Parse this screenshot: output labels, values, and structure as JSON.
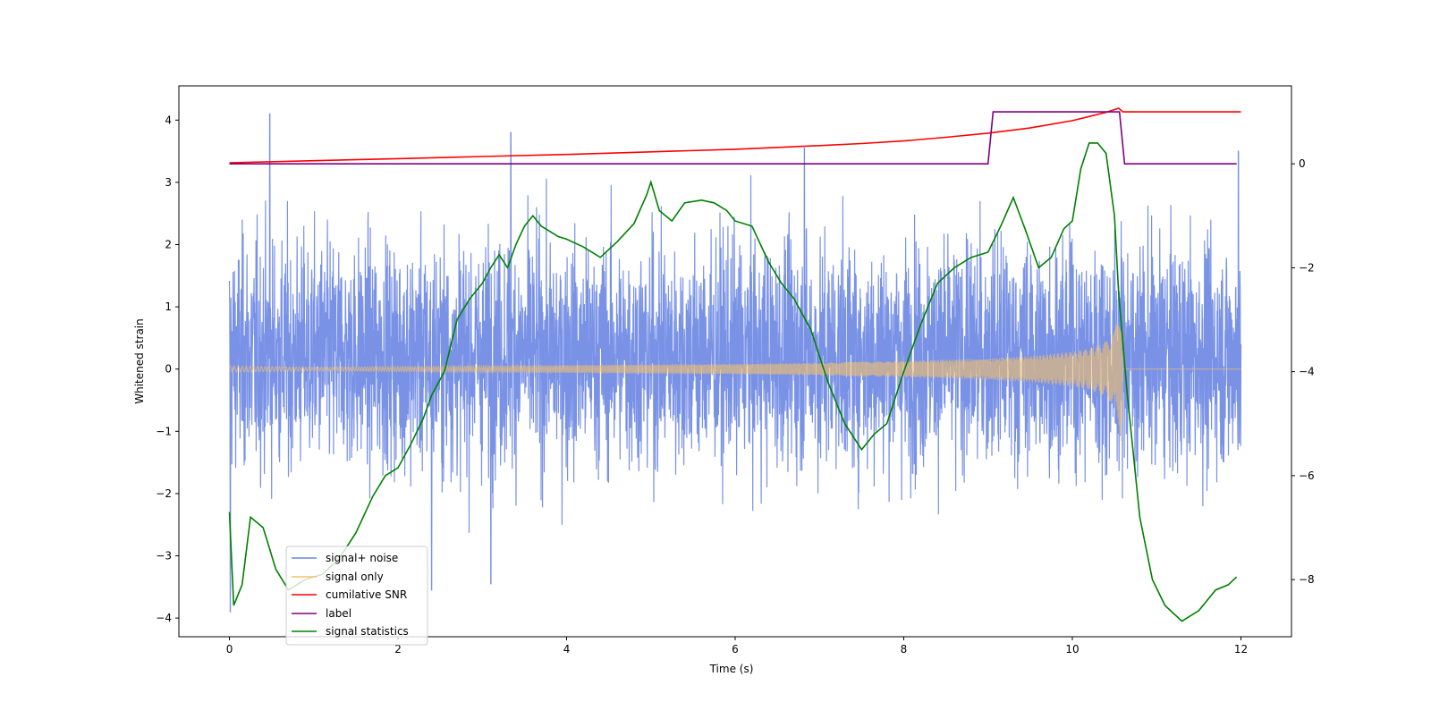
{
  "chart_data": {
    "type": "line",
    "xlabel": "Time (s)",
    "ylabel": "Whitened strain",
    "xlim": [
      -0.6,
      12.6
    ],
    "ylim_left": [
      -4.3,
      4.55
    ],
    "ylim_right": [
      -9.1,
      1.5
    ],
    "x_ticks": [
      "0",
      "2",
      "4",
      "6",
      "8",
      "10",
      "12"
    ],
    "y_ticks_left": [
      "4",
      "3",
      "2",
      "1",
      "0",
      "−1",
      "−2",
      "−3",
      "−4"
    ],
    "y_ticks_right": [
      "0",
      "−2",
      "−4",
      "−6",
      "−8"
    ],
    "legend_position": "lower left",
    "grid": false,
    "series": [
      {
        "name": "signal+ noise",
        "color": "#6A86E3",
        "axis": "left",
        "description_values": {
          "x_range": [
            0,
            12
          ],
          "typical_amplitude": [
            -1.6,
            2.0
          ],
          "max_peaks": [
            4.1,
            3.8,
            3.55,
            3.5
          ],
          "min_peaks": [
            -3.9,
            -3.55,
            -3.45
          ]
        }
      },
      {
        "name": "signal only",
        "color": "#F5C26B",
        "axis": "left",
        "envelope": {
          "x": [
            0,
            1,
            2,
            3,
            4,
            5,
            6,
            7,
            8,
            9,
            9.5,
            10,
            10.2,
            10.4,
            10.5,
            10.55,
            10.58,
            10.6,
            12
          ],
          "amplitude": [
            0.05,
            0.03,
            0.04,
            0.05,
            0.06,
            0.07,
            0.08,
            0.1,
            0.13,
            0.17,
            0.21,
            0.28,
            0.33,
            0.45,
            0.6,
            0.9,
            1.2,
            0.0,
            0.0
          ]
        }
      },
      {
        "name": "cumilative SNR",
        "color": "#FF0000",
        "axis": "right",
        "x": [
          0,
          1,
          2,
          3,
          4,
          5,
          6,
          7,
          7.5,
          8,
          8.5,
          9,
          9.5,
          10,
          10.2,
          10.4,
          10.55,
          10.6,
          12
        ],
        "y": [
          0.02,
          0.06,
          0.1,
          0.14,
          0.18,
          0.23,
          0.28,
          0.35,
          0.39,
          0.44,
          0.51,
          0.59,
          0.69,
          0.83,
          0.91,
          0.99,
          1.07,
          1.0,
          1.0
        ]
      },
      {
        "name": "label",
        "color": "#800080",
        "axis": "right",
        "x": [
          0,
          9.0,
          9.06,
          10.56,
          10.62,
          11.95
        ],
        "y": [
          0,
          0,
          1,
          1,
          0,
          0
        ]
      },
      {
        "name": "signal statistics",
        "color": "#008000",
        "axis": "right",
        "x": [
          0.0,
          0.05,
          0.15,
          0.25,
          0.4,
          0.55,
          0.7,
          0.9,
          1.1,
          1.3,
          1.5,
          1.7,
          1.85,
          2.0,
          2.15,
          2.3,
          2.4,
          2.55,
          2.7,
          2.85,
          3.0,
          3.1,
          3.2,
          3.3,
          3.4,
          3.5,
          3.6,
          3.7,
          3.8,
          3.9,
          4.0,
          4.2,
          4.4,
          4.6,
          4.8,
          4.95,
          5.0,
          5.1,
          5.25,
          5.4,
          5.6,
          5.75,
          5.9,
          6.0,
          6.2,
          6.4,
          6.55,
          6.7,
          6.9,
          7.1,
          7.3,
          7.5,
          7.65,
          7.8,
          8.0,
          8.2,
          8.4,
          8.6,
          8.8,
          9.0,
          9.15,
          9.3,
          9.45,
          9.6,
          9.75,
          9.9,
          10.0,
          10.1,
          10.2,
          10.3,
          10.4,
          10.5,
          10.55,
          10.65,
          10.8,
          10.95,
          11.1,
          11.3,
          11.5,
          11.7,
          11.85,
          11.95
        ],
        "y": [
          -6.7,
          -8.5,
          -8.1,
          -6.8,
          -7.0,
          -7.8,
          -8.2,
          -8.0,
          -7.9,
          -7.6,
          -7.1,
          -6.4,
          -6.0,
          -5.85,
          -5.4,
          -4.9,
          -4.45,
          -4.0,
          -3.0,
          -2.6,
          -2.3,
          -2.0,
          -1.75,
          -2.0,
          -1.55,
          -1.2,
          -1.0,
          -1.2,
          -1.3,
          -1.4,
          -1.45,
          -1.6,
          -1.8,
          -1.5,
          -1.15,
          -0.6,
          -0.35,
          -0.9,
          -1.1,
          -0.75,
          -0.7,
          -0.75,
          -0.9,
          -1.1,
          -1.2,
          -1.9,
          -2.3,
          -2.6,
          -3.2,
          -4.2,
          -5.0,
          -5.5,
          -5.2,
          -5.0,
          -4.0,
          -3.1,
          -2.3,
          -2.0,
          -1.8,
          -1.7,
          -1.2,
          -0.65,
          -1.3,
          -2.0,
          -1.8,
          -1.25,
          -1.1,
          -0.1,
          0.4,
          0.4,
          0.2,
          -1.0,
          -2.5,
          -4.4,
          -6.8,
          -8.0,
          -8.5,
          -8.8,
          -8.6,
          -8.2,
          -8.1,
          -7.95
        ]
      }
    ]
  }
}
